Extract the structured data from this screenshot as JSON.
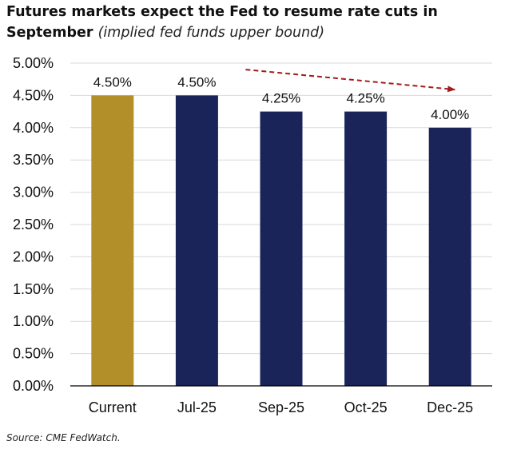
{
  "title": {
    "main": "Futures markets expect the Fed to resume rate cuts in September",
    "subtitle": "(implied fed funds upper bound)"
  },
  "source": "Source: CME FedWatch.",
  "colors": {
    "current": "#b38f2a",
    "future": "#1a2459",
    "arrow": "#a31c1c",
    "grid": "#d9d9d9",
    "axis": "#000000"
  },
  "chart_data": {
    "type": "bar",
    "title": "Futures markets expect the Fed to resume rate cuts in September",
    "subtitle": "(implied fed funds upper bound)",
    "categories": [
      "Current",
      "Jul-25",
      "Sep-25",
      "Oct-25",
      "Dec-25"
    ],
    "values": [
      4.5,
      4.5,
      4.25,
      4.25,
      4.0
    ],
    "data_labels": [
      "4.50%",
      "4.50%",
      "4.25%",
      "4.25%",
      "4.00%"
    ],
    "bar_colors": [
      "#b38f2a",
      "#1a2459",
      "#1a2459",
      "#1a2459",
      "#1a2459"
    ],
    "ylim": [
      0,
      5
    ],
    "yticks": [
      0,
      0.5,
      1,
      1.5,
      2,
      2.5,
      3,
      3.5,
      4,
      4.5,
      5
    ],
    "ytick_labels": [
      "0.00%",
      "0.50%",
      "1.00%",
      "1.50%",
      "2.00%",
      "2.50%",
      "3.00%",
      "3.50%",
      "4.00%",
      "4.50%",
      "5.00%"
    ],
    "xlabel": "",
    "ylabel": "",
    "grid": true,
    "legend": "none",
    "annotation": {
      "type": "dashed-arrow",
      "from_category": "Jul-25",
      "to_category": "Dec-25",
      "from_value": 4.9,
      "to_value": 4.59
    }
  }
}
